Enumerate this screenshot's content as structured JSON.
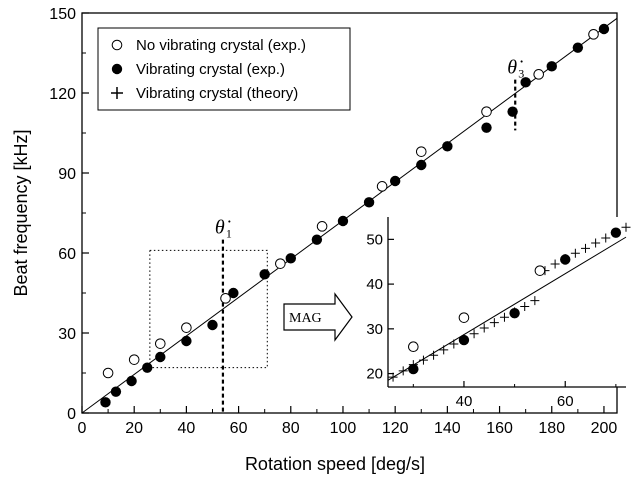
{
  "chart_data": [
    {
      "type": "scatter",
      "xlabel": "Rotation speed [deg/s]",
      "ylabel": "Beat frequency [kHz]",
      "xlim": [
        0,
        205
      ],
      "ylim": [
        0,
        150
      ],
      "xticks": [
        0,
        20,
        40,
        60,
        80,
        100,
        120,
        140,
        160,
        180,
        200
      ],
      "yticks": [
        0,
        30,
        60,
        90,
        120,
        150
      ],
      "legend_position": "top-left",
      "legend": [
        {
          "marker": "open-circle",
          "label": "No vibrating crystal (exp.)"
        },
        {
          "marker": "filled-circle",
          "label": "Vibrating crystal (exp.)"
        },
        {
          "marker": "plus",
          "label": "Vibrating crystal (theory)"
        }
      ],
      "series": [
        {
          "name": "No vibrating crystal (exp.)",
          "marker": "open-circle",
          "x": [
            10,
            20,
            30,
            40,
            55,
            76,
            92,
            115,
            130,
            155,
            175,
            196
          ],
          "y": [
            15,
            20,
            26,
            32,
            43,
            56,
            70,
            85,
            98,
            113,
            127,
            142
          ]
        },
        {
          "name": "Vibrating crystal (exp.)",
          "marker": "filled-circle",
          "x": [
            9,
            13,
            19,
            25,
            30,
            40,
            50,
            58,
            70,
            80,
            90,
            100,
            110,
            120,
            130,
            140,
            155,
            165,
            170,
            180,
            190,
            200
          ],
          "y": [
            4,
            8,
            12,
            17,
            21,
            27,
            33,
            45,
            52,
            58,
            65,
            72,
            79,
            87,
            93,
            100,
            107,
            113,
            124,
            130,
            137,
            144
          ]
        }
      ],
      "fit_line": {
        "x": [
          0,
          205
        ],
        "y": [
          0,
          148
        ]
      },
      "annotations": [
        {
          "symbol": "θ̇",
          "subscript": "1",
          "x": 54
        },
        {
          "symbol": "θ̇",
          "subscript": "3",
          "x": 166
        }
      ],
      "zoom_box": {
        "x": [
          26,
          71
        ],
        "y": [
          17,
          61
        ]
      },
      "callout": "MAG"
    },
    {
      "type": "scatter",
      "role": "inset",
      "xlim": [
        25,
        72
      ],
      "ylim": [
        17,
        55
      ],
      "xticks": [
        40,
        60
      ],
      "yticks": [
        20,
        30,
        40,
        50
      ],
      "series": [
        {
          "name": "No vibrating crystal (exp.)",
          "marker": "open-circle",
          "x": [
            30,
            40,
            55
          ],
          "y": [
            26,
            32.5,
            43
          ]
        },
        {
          "name": "Vibrating crystal (exp.)",
          "marker": "filled-circle",
          "x": [
            30,
            40,
            50,
            60,
            70
          ],
          "y": [
            21,
            27.5,
            33.5,
            45.5,
            51.5
          ]
        },
        {
          "name": "Vibrating crystal (theory)",
          "marker": "plus",
          "x": [
            26,
            28,
            30,
            32,
            34,
            36,
            38,
            40,
            42,
            44,
            46,
            48,
            50,
            52,
            54,
            56,
            58,
            60,
            62,
            64,
            66,
            68,
            70,
            72
          ],
          "y": [
            19.2,
            20.6,
            22,
            23,
            24.1,
            25.3,
            26.6,
            27.8,
            28.9,
            30.2,
            31.4,
            32.6,
            33.8,
            35,
            36.3,
            43,
            44.5,
            45.7,
            46.9,
            48,
            49.2,
            50.3,
            51.5,
            52.7
          ]
        }
      ],
      "fit_line": {
        "x": [
          25,
          72
        ],
        "y": [
          18.5,
          50.5
        ]
      }
    }
  ]
}
